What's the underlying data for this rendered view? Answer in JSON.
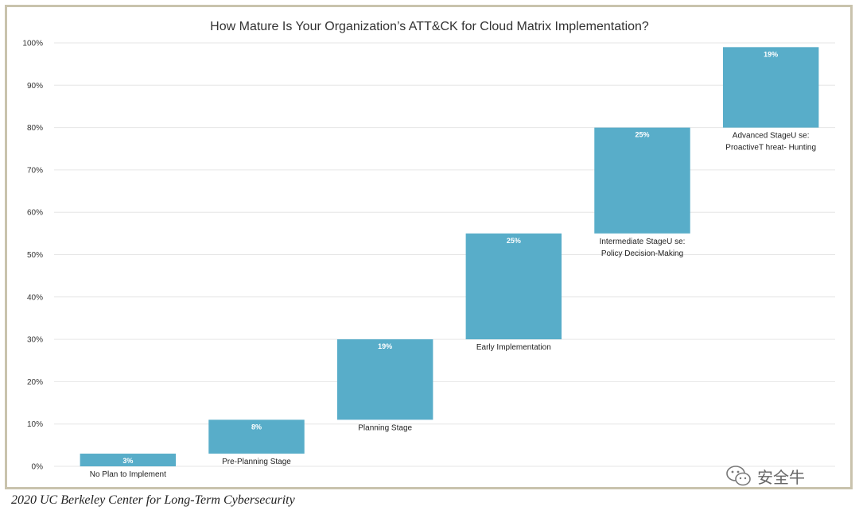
{
  "chart_data": {
    "type": "bar",
    "title": "How Mature Is Your Organization’s ATT&CK for Cloud Matrix Implementation?",
    "xlabel": "",
    "ylabel": "",
    "ylim": [
      0,
      100
    ],
    "yticks": [
      "0%",
      "10%",
      "20%",
      "30%",
      "40%",
      "50%",
      "60%",
      "70%",
      "80%",
      "90%",
      "100%"
    ],
    "grid": true,
    "bar_color": "#58adc9",
    "bars": [
      {
        "category": [
          "No Plan to Implement"
        ],
        "start": 0,
        "value": 3,
        "label": "3%"
      },
      {
        "category": [
          "Pre-Planning Stage"
        ],
        "start": 3,
        "value": 8,
        "label": "8%"
      },
      {
        "category": [
          "Planning Stage"
        ],
        "start": 11,
        "value": 19,
        "label": "19%"
      },
      {
        "category": [
          "Early Implementation"
        ],
        "start": 30,
        "value": 25,
        "label": "25%"
      },
      {
        "category": [
          "Intermediate StageU se:",
          "Policy Decision-Making"
        ],
        "start": 55,
        "value": 25,
        "label": "25%"
      },
      {
        "category": [
          "Advanced StageU se:",
          "ProactiveT hreat- Hunting"
        ],
        "start": 80,
        "value": 19,
        "label": "19%"
      }
    ]
  },
  "caption": "2020 UC Berkeley Center for Long-Term Cybersecurity",
  "watermark": {
    "text": "安全牛",
    "icon": "wechat-icon"
  }
}
